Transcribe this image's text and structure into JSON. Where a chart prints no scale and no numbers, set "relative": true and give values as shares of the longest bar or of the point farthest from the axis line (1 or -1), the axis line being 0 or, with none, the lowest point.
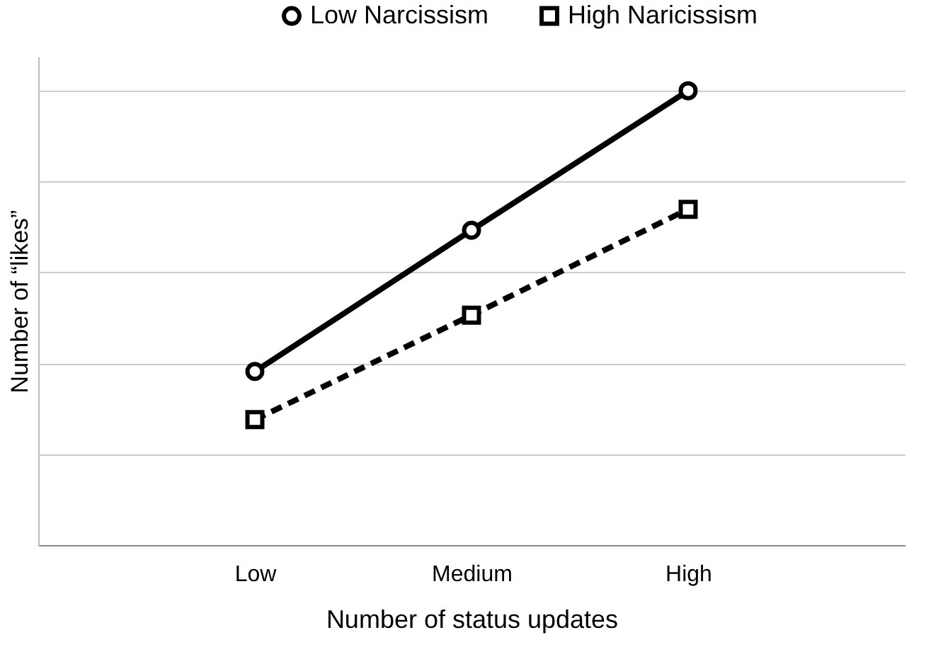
{
  "chart_data": {
    "type": "line",
    "relative": true,
    "xlabel": "Number of status updates",
    "ylabel": "Number of “likes”",
    "categories": [
      "Low",
      "Medium",
      "High"
    ],
    "series": [
      {
        "name": "Low Narcissism",
        "color": "#000000",
        "values": [
          0.382,
          0.693,
          1
        ],
        "marker": "circle",
        "line_style": "solid"
      },
      {
        "name": "High Naricissism",
        "color": "#000000",
        "values": [
          0.276,
          0.506,
          0.739
        ],
        "marker": "square",
        "line_style": "dashed"
      }
    ],
    "grid": "y",
    "legend": "top right"
  }
}
